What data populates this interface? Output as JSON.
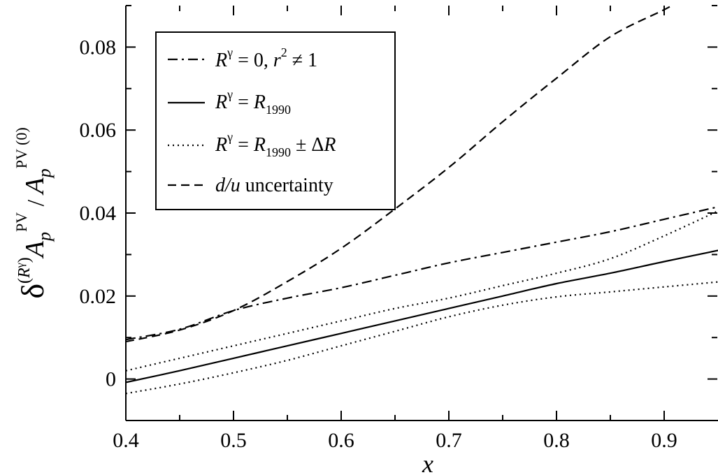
{
  "chart_data": {
    "type": "line",
    "title": "",
    "xlabel": "x",
    "ylabel": "δ(Rγ) Ap PV / Ap PV (0)",
    "xlim": [
      0.4,
      0.95
    ],
    "ylim": [
      -0.01,
      0.09
    ],
    "x_ticks": [
      "0.4",
      "0.5",
      "0.6",
      "0.7",
      "0.8",
      "0.9"
    ],
    "y_ticks": [
      "0",
      "0.02",
      "0.04",
      "0.06",
      "0.08"
    ],
    "grid": false,
    "legend_position": "top-left",
    "series": [
      {
        "name": "Rγ = 0, r² ≠ 1",
        "style": "dashdot",
        "x": [
          0.4,
          0.45,
          0.5,
          0.55,
          0.6,
          0.65,
          0.7,
          0.75,
          0.8,
          0.85,
          0.9,
          0.95
        ],
        "y": [
          0.0095,
          0.012,
          0.0165,
          0.0195,
          0.022,
          0.025,
          0.028,
          0.0305,
          0.033,
          0.0355,
          0.0385,
          0.0415
        ]
      },
      {
        "name": "Rγ = R1990",
        "style": "solid",
        "x": [
          0.4,
          0.45,
          0.5,
          0.55,
          0.6,
          0.65,
          0.7,
          0.75,
          0.8,
          0.85,
          0.9,
          0.95
        ],
        "y": [
          -0.0008,
          0.002,
          0.005,
          0.008,
          0.011,
          0.014,
          0.017,
          0.02,
          0.023,
          0.0255,
          0.0283,
          0.031
        ]
      },
      {
        "name": "Rγ = R1990 ± ΔR (upper)",
        "legend_label": "Rγ = R1990 ± ΔR",
        "style": "dotted",
        "x": [
          0.4,
          0.45,
          0.5,
          0.55,
          0.6,
          0.65,
          0.7,
          0.75,
          0.8,
          0.85,
          0.9,
          0.95
        ],
        "y": [
          0.002,
          0.005,
          0.008,
          0.011,
          0.014,
          0.017,
          0.0195,
          0.0225,
          0.0255,
          0.029,
          0.0345,
          0.0405
        ]
      },
      {
        "name": "Rγ = R1990 ± ΔR (lower)",
        "style": "dotted",
        "x": [
          0.4,
          0.45,
          0.5,
          0.55,
          0.6,
          0.65,
          0.7,
          0.75,
          0.8,
          0.85,
          0.9,
          0.95
        ],
        "y": [
          -0.0035,
          -0.0012,
          0.0015,
          0.0045,
          0.008,
          0.0115,
          0.015,
          0.0178,
          0.0198,
          0.021,
          0.0222,
          0.0234
        ]
      },
      {
        "name": "d/u uncertainty",
        "style": "dashed",
        "x": [
          0.4,
          0.45,
          0.5,
          0.55,
          0.6,
          0.65,
          0.7,
          0.75,
          0.8,
          0.85,
          0.9,
          0.91
        ],
        "y": [
          0.009,
          0.0118,
          0.0165,
          0.0235,
          0.0315,
          0.041,
          0.051,
          0.062,
          0.0725,
          0.0825,
          0.089,
          0.0905
        ]
      }
    ],
    "legend_entries": [
      {
        "style": "dashdot",
        "R": "R",
        "sup": "γ",
        "rest": " = 0, ",
        "r": "r",
        "r2": "2",
        "neq": " ≠ 1"
      },
      {
        "style": "solid",
        "R": "R",
        "sup": "γ",
        "eq": " = ",
        "R2": "R",
        "sub": "1990"
      },
      {
        "style": "dotted",
        "R": "R",
        "sup": "γ",
        "eq": " = ",
        "R2": "R",
        "sub": "1990",
        "pm": " ± Δ",
        "R3": "R"
      },
      {
        "style": "dashed",
        "italic": "d/u",
        "rest": " uncertainty"
      }
    ],
    "ylabel_parts": {
      "delta": "δ",
      "paren_open": "(",
      "R": "R",
      "gamma": "γ",
      "paren_close": ")",
      "A": "A",
      "p": "p",
      "PV": "PV",
      "slash": " / ",
      "A2": "A",
      "p2": "p",
      "PV0": "PV (0)"
    }
  }
}
